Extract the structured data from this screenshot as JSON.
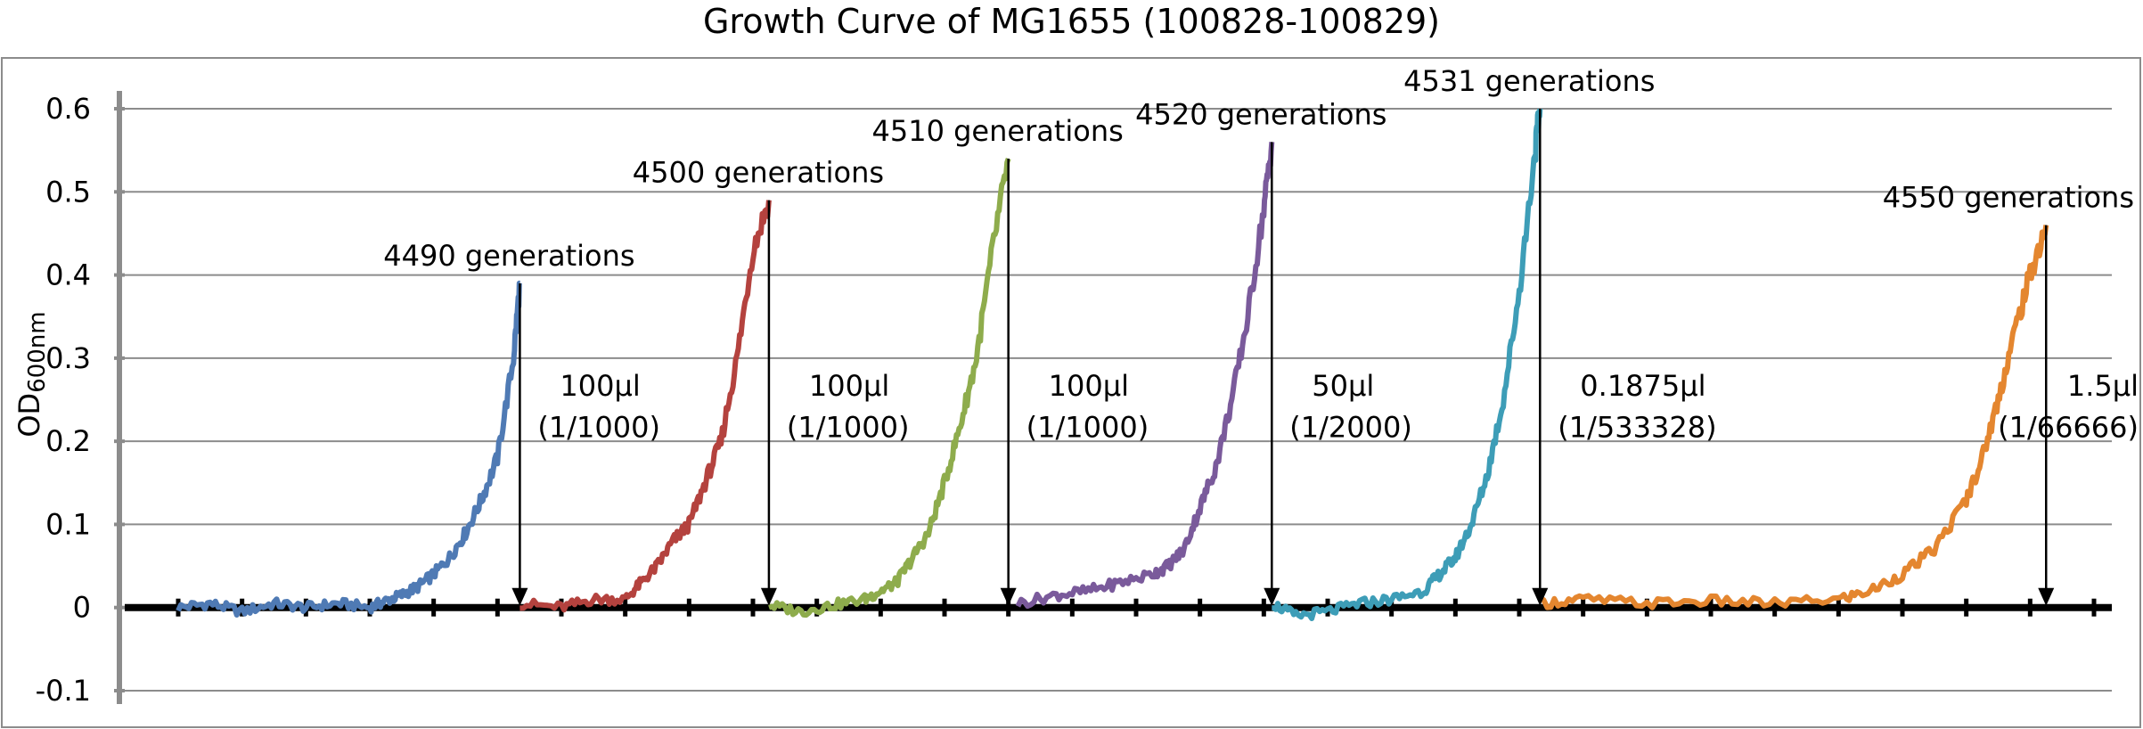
{
  "chart_data": {
    "type": "line",
    "title": "Growth Curve of MG1655 (100828-100829)",
    "ylabel": "OD",
    "ylabel_sub": "600nm",
    "ylim": [
      -0.1,
      0.6
    ],
    "yticks": [
      {
        "value": 0.6,
        "label": "0.6"
      },
      {
        "value": 0.5,
        "label": "0.5"
      },
      {
        "value": 0.4,
        "label": "0.4"
      },
      {
        "value": 0.3,
        "label": "0.3"
      },
      {
        "value": 0.2,
        "label": "0.2"
      },
      {
        "value": 0.1,
        "label": "0.1"
      },
      {
        "value": 0,
        "label": "0"
      },
      {
        "value": -0.1,
        "label": "-0.1"
      }
    ],
    "grid": true,
    "colors": [
      "#4f7ab4",
      "#b4423e",
      "#8eac4c",
      "#7a5a9b",
      "#3d9db7",
      "#e4862f"
    ],
    "series": [
      {
        "x": [
          0,
          2,
          4,
          6,
          8,
          10,
          12,
          13,
          14,
          15,
          16,
          17,
          18,
          19,
          20,
          21,
          21.4
        ],
        "y": [
          0,
          0.005,
          -0.005,
          0.005,
          0,
          0.005,
          0,
          0.008,
          0.015,
          0.025,
          0.04,
          0.06,
          0.09,
          0.13,
          0.18,
          0.3,
          0.39
        ]
      },
      {
        "x": [
          21.4,
          24,
          26,
          28,
          29,
          30,
          31,
          32,
          33,
          34,
          35,
          36,
          37
        ],
        "y": [
          0.005,
          0,
          0.01,
          0.01,
          0.03,
          0.05,
          0.08,
          0.1,
          0.15,
          0.2,
          0.3,
          0.43,
          0.49
        ]
      },
      {
        "x": [
          37,
          39,
          41,
          43,
          44,
          45,
          46,
          47,
          48,
          49,
          50,
          51,
          52
        ],
        "y": [
          0.003,
          -0.005,
          0.003,
          0.01,
          0.02,
          0.03,
          0.06,
          0.09,
          0.15,
          0.22,
          0.3,
          0.43,
          0.54
        ]
      },
      {
        "x": [
          52.6,
          55,
          57,
          59,
          61,
          62,
          63,
          64,
          65,
          66,
          67,
          68,
          68.5
        ],
        "y": [
          0.005,
          0.015,
          0.02,
          0.03,
          0.04,
          0.05,
          0.07,
          0.12,
          0.17,
          0.25,
          0.35,
          0.48,
          0.56
        ]
      },
      {
        "x": [
          68.5,
          70,
          72,
          74,
          76,
          78,
          79,
          80,
          81,
          82,
          83,
          84,
          85,
          85.3
        ],
        "y": [
          0.005,
          -0.01,
          -0.005,
          0.005,
          0.01,
          0.02,
          0.04,
          0.06,
          0.1,
          0.16,
          0.25,
          0.38,
          0.55,
          0.6
        ]
      },
      {
        "x": [
          85.3,
          88,
          92,
          96,
          100,
          104,
          106,
          108,
          110,
          112,
          113,
          114,
          115,
          116,
          117
        ],
        "y": [
          0.005,
          0.01,
          0.005,
          0.008,
          0.005,
          0.01,
          0.02,
          0.04,
          0.07,
          0.13,
          0.18,
          0.25,
          0.33,
          0.4,
          0.46
        ]
      }
    ],
    "generation_labels": [
      "4490 generations",
      "4500 generations",
      "4510 generations",
      "4520 generations",
      "4531 generations",
      "4550 generations"
    ],
    "transfer_annotations": [
      {
        "volume": "100μl",
        "dilution": "(1/1000)"
      },
      {
        "volume": "100μl",
        "dilution": "(1/1000)"
      },
      {
        "volume": "100μl",
        "dilution": "(1/1000)"
      },
      {
        "volume": "50μl",
        "dilution": "(1/2000)"
      },
      {
        "volume": "0.1875μl",
        "dilution": "(1/533328)"
      },
      {
        "volume": "1.5μl",
        "dilution": "(1/66666)"
      }
    ]
  }
}
